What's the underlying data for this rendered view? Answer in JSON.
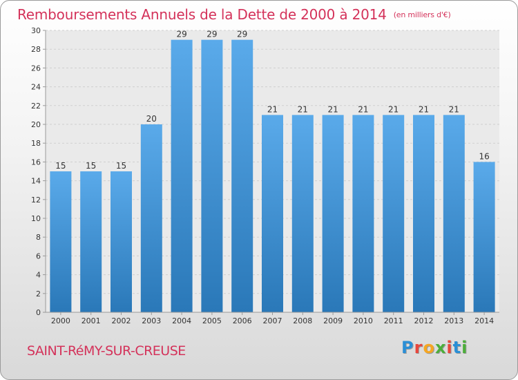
{
  "chart_data": {
    "type": "bar",
    "title": "Remboursements Annuels de la Dette de 2000 à 2014",
    "unit_note": "(en milliers d'€)",
    "categories": [
      "2000",
      "2001",
      "2002",
      "2003",
      "2004",
      "2005",
      "2006",
      "2007",
      "2008",
      "2009",
      "2010",
      "2011",
      "2012",
      "2013",
      "2014"
    ],
    "values": [
      15,
      15,
      15,
      20,
      29,
      29,
      29,
      21,
      21,
      21,
      21,
      21,
      21,
      21,
      16
    ],
    "ylim": [
      0,
      30
    ],
    "yticks": [
      0,
      2,
      4,
      6,
      8,
      10,
      12,
      14,
      16,
      18,
      20,
      22,
      24,
      26,
      28,
      30
    ],
    "grid": true,
    "bar_color_top": "#5aaaea",
    "bar_color_bottom": "#2a78b8"
  },
  "location": "SAINT-RéMY-SUR-CREUSE",
  "logo": {
    "letters": [
      "P",
      "r",
      "o",
      "x",
      "i",
      "t",
      "i"
    ],
    "colors": [
      "#2a8fd6",
      "#e8463c",
      "#f5a623",
      "#4cae3a",
      "#e8463c",
      "#2a8fd6",
      "#4cae3a"
    ]
  }
}
